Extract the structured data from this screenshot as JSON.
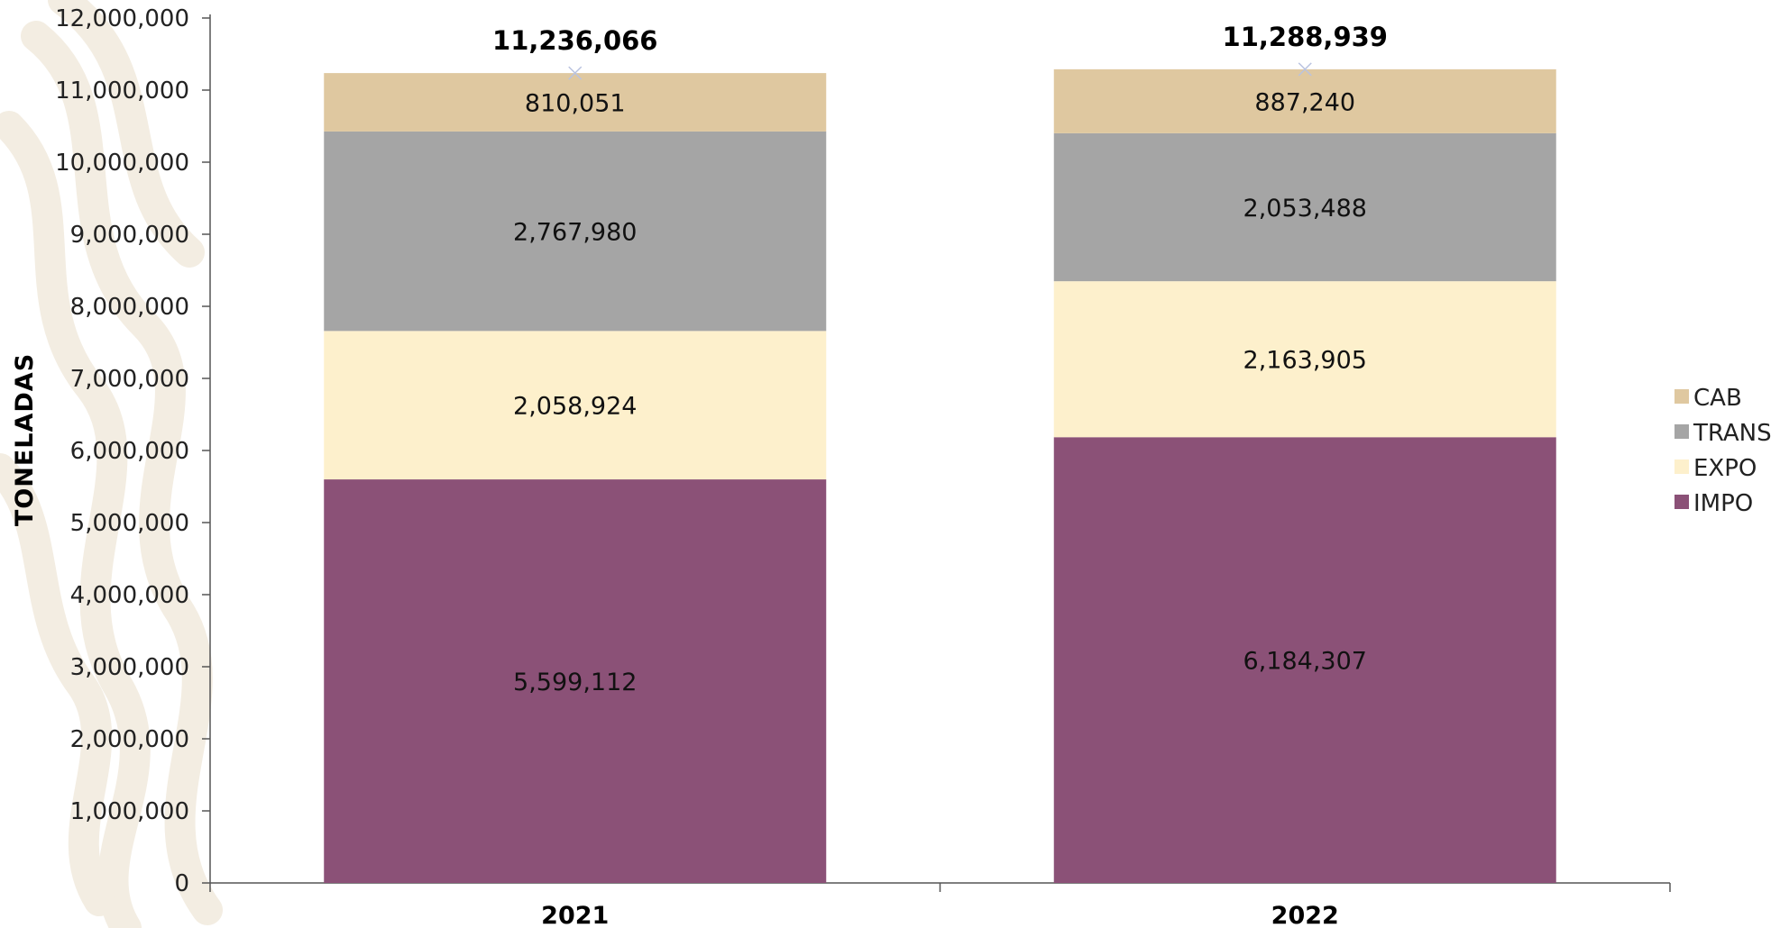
{
  "chart_data": {
    "type": "bar",
    "stacked": true,
    "title": "",
    "xlabel": "",
    "ylabel": "TONELADAS",
    "ylim": [
      0,
      12000000
    ],
    "ytick_labels": [
      "0",
      "1,000,000",
      "2,000,000",
      "3,000,000",
      "4,000,000",
      "5,000,000",
      "6,000,000",
      "7,000,000",
      "8,000,000",
      "9,000,000",
      "10,000,000",
      "11,000,000",
      "12,000,000"
    ],
    "categories": [
      "2021",
      "2022"
    ],
    "series": [
      {
        "name": "IMPO",
        "values": [
          5599112,
          6184307
        ],
        "labels": [
          "5,599,112",
          "6,184,307"
        ],
        "color": "#8B5177"
      },
      {
        "name": "EXPO",
        "values": [
          2058924,
          2163905
        ],
        "labels": [
          "2,058,924",
          "2,163,905"
        ],
        "color": "#FDF0CC"
      },
      {
        "name": "TRANS",
        "values": [
          2767980,
          2053488
        ],
        "labels": [
          "2,767,980",
          "2,053,488"
        ],
        "color": "#A5A5A5"
      },
      {
        "name": "CAB",
        "values": [
          810051,
          887240
        ],
        "labels": [
          "810,051",
          "887,240"
        ],
        "color": "#DFC8A0"
      }
    ],
    "totals": [
      11236066,
      11288939
    ],
    "total_labels": [
      "11,236,066",
      "11,288,939"
    ],
    "legend": {
      "position": "right",
      "order": [
        "CAB",
        "TRANS",
        "EXPO",
        "IMPO"
      ]
    },
    "grid": false
  }
}
